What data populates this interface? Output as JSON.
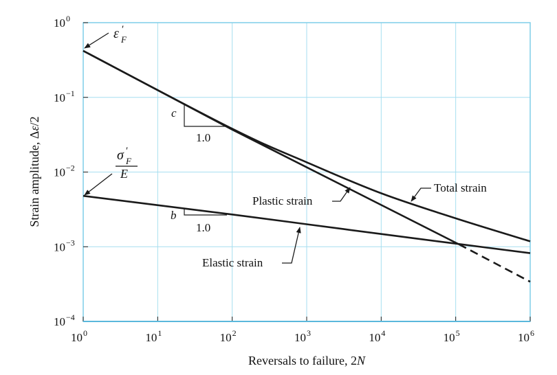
{
  "chart_data": {
    "type": "line",
    "title": "",
    "xlabel": "Reversals to failure, 2N",
    "ylabel": "Strain amplitude, Δε/2",
    "xscale": "log",
    "yscale": "log",
    "xlim": [
      1,
      1000000
    ],
    "ylim": [
      0.0001,
      1
    ],
    "grid": true,
    "x_ticks": [
      {
        "base": "10",
        "exp": "0"
      },
      {
        "base": "10",
        "exp": "1"
      },
      {
        "base": "10",
        "exp": "2"
      },
      {
        "base": "10",
        "exp": "3"
      },
      {
        "base": "10",
        "exp": "4"
      },
      {
        "base": "10",
        "exp": "5"
      },
      {
        "base": "10",
        "exp": "6"
      }
    ],
    "y_ticks": [
      {
        "base": "10",
        "exp": "0"
      },
      {
        "base": "10",
        "exp": "−1"
      },
      {
        "base": "10",
        "exp": "−2"
      },
      {
        "base": "10",
        "exp": "−3"
      },
      {
        "base": "10",
        "exp": "−4"
      }
    ],
    "series": [
      {
        "name": "Plastic strain",
        "style": "solid-then-dashed",
        "points": [
          [
            1,
            0.42
          ],
          [
            100,
            0.037
          ],
          [
            110000,
            0.00108
          ]
        ],
        "dashed_points": [
          [
            110000,
            0.00108
          ],
          [
            1000000,
            0.00034
          ]
        ]
      },
      {
        "name": "Elastic strain",
        "style": "solid",
        "points": [
          [
            1,
            0.0048
          ],
          [
            100,
            0.0027
          ],
          [
            1000,
            0.002
          ],
          [
            10000,
            0.00148
          ],
          [
            100000,
            0.0011
          ],
          [
            1000000,
            0.00082
          ]
        ]
      },
      {
        "name": "Total strain",
        "style": "solid",
        "points": [
          [
            1,
            0.42
          ],
          [
            100,
            0.038
          ],
          [
            1000,
            0.0135
          ],
          [
            10000,
            0.0052
          ],
          [
            100000,
            0.0024
          ],
          [
            1000000,
            0.00118
          ]
        ]
      }
    ],
    "annotations": {
      "eps_f": {
        "sym": "ε",
        "sup": "′",
        "sub": "F"
      },
      "sigma_f": {
        "sym": "σ",
        "sup": "′",
        "sub": "F",
        "den": "E"
      },
      "c_label": "c",
      "b_label": "b",
      "c_run": "1.0",
      "b_run": "1.0",
      "plastic": "Plastic strain",
      "elastic": "Elastic strain",
      "total": "Total strain"
    }
  }
}
